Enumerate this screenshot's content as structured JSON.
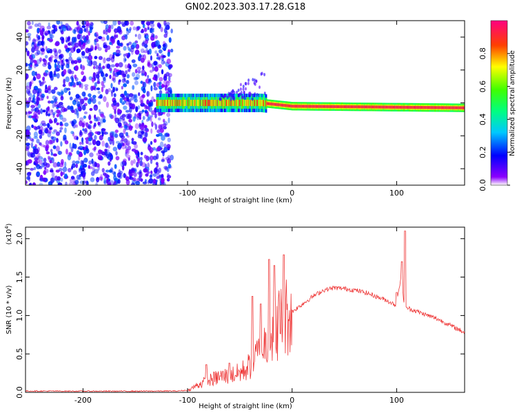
{
  "title": "GN02.2023.303.17.28.G18",
  "chart_data": [
    {
      "type": "heatmap",
      "xlabel": "Height of straight line (km)",
      "ylabel": "Frequency (Hz)",
      "xlim": [
        -255,
        165
      ],
      "ylim": [
        -50,
        50
      ],
      "x_ticks": [
        -200,
        -100,
        0,
        100
      ],
      "x_tick_labels": [
        "-200",
        "-100",
        "0",
        "100"
      ],
      "y_ticks": [
        -40,
        -20,
        0,
        20,
        40
      ],
      "y_tick_labels": [
        "-40",
        "-20",
        "0",
        "20",
        "40"
      ],
      "colorbar": {
        "label": "Normalized spectral amplitude",
        "range": [
          0,
          1
        ],
        "ticks": [
          0.0,
          0.2,
          0.4,
          0.6,
          0.8
        ],
        "tick_labels": [
          "0.0",
          "0.2",
          "0.4",
          "0.6",
          "0.8"
        ],
        "colormap": "rainbow"
      },
      "regions": [
        {
          "desc": "noise",
          "x_range": [
            -255,
            -115
          ],
          "freq_range": [
            -50,
            50
          ],
          "amplitude": [
            0.05,
            0.25
          ]
        },
        {
          "desc": "signal",
          "x_range": [
            -130,
            165
          ],
          "center_freq_at_x": [
            [
              -130,
              0
            ],
            [
              -30,
              0
            ],
            [
              0,
              -2
            ],
            [
              165,
              -3
            ]
          ],
          "amplitude": [
            0.3,
            0.95
          ]
        }
      ],
      "grid": false
    },
    {
      "type": "line",
      "xlabel": "Height of straight line (km)",
      "ylabel": "SNR (10 * v/v)",
      "y_multiplier_label": "(x10",
      "y_multiplier_exp": "4",
      "y_multiplier_close": ")",
      "xlim": [
        -255,
        165
      ],
      "ylim": [
        0,
        21500
      ],
      "x_ticks": [
        -200,
        -100,
        0,
        100
      ],
      "x_tick_labels": [
        "-200",
        "-100",
        "0",
        "100"
      ],
      "y_ticks": [
        0,
        5000,
        10000,
        15000,
        20000
      ],
      "y_tick_labels": [
        "0.0",
        "0.5",
        "1.0",
        "1.5",
        "2.0"
      ],
      "series_color": "#ee3333",
      "x": [
        -255,
        -200,
        -150,
        -110,
        -100,
        -90,
        -80,
        -70,
        -60,
        -50,
        -40,
        -30,
        -20,
        -10,
        0,
        10,
        20,
        30,
        40,
        50,
        60,
        70,
        80,
        90,
        100,
        104,
        108,
        110,
        120,
        130,
        140,
        150,
        165
      ],
      "y": [
        100,
        80,
        80,
        100,
        200,
        1000,
        1500,
        2000,
        2200,
        2500,
        3500,
        5500,
        7500,
        9500,
        10500,
        11500,
        12500,
        13300,
        13600,
        13500,
        13300,
        13000,
        12500,
        12000,
        11300,
        15000,
        10800,
        11000,
        10500,
        10000,
        9500,
        8800,
        7800
      ],
      "spikes": [
        [
          -82,
          3600
        ],
        [
          -60,
          3800
        ],
        [
          -38,
          12500
        ],
        [
          -30,
          11500
        ],
        [
          -22,
          17300
        ],
        [
          -17,
          16500
        ],
        [
          -8,
          17900
        ],
        [
          100,
          13000
        ],
        [
          105,
          17000
        ],
        [
          108,
          21000
        ]
      ],
      "grid": false
    }
  ]
}
